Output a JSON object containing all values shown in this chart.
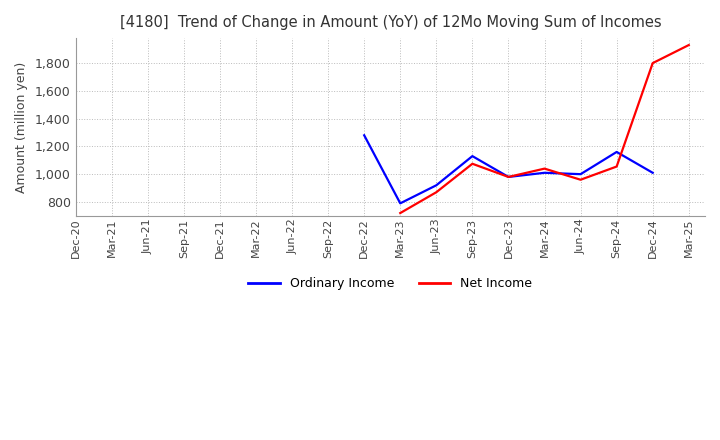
{
  "title": "[4180]  Trend of Change in Amount (YoY) of 12Mo Moving Sum of Incomes",
  "ylabel": "Amount (million yen)",
  "background_color": "#ffffff",
  "grid_color": "#bbbbbb",
  "title_color": "#333333",
  "x_labels": [
    "Dec-20",
    "Mar-21",
    "Jun-21",
    "Sep-21",
    "Dec-21",
    "Mar-22",
    "Jun-22",
    "Sep-22",
    "Dec-22",
    "Mar-23",
    "Jun-23",
    "Sep-23",
    "Dec-23",
    "Mar-24",
    "Jun-24",
    "Sep-24",
    "Dec-24",
    "Mar-25"
  ],
  "ordinary_income": [
    null,
    null,
    null,
    null,
    null,
    null,
    null,
    null,
    1280,
    790,
    920,
    1130,
    980,
    1010,
    1000,
    1160,
    1010,
    null
  ],
  "net_income": [
    null,
    null,
    null,
    null,
    null,
    null,
    null,
    null,
    null,
    720,
    870,
    1075,
    980,
    1040,
    960,
    1055,
    1800,
    1930
  ],
  "ordinary_color": "#0000ff",
  "net_color": "#ff0000",
  "ylim": [
    700,
    1980
  ],
  "yticks": [
    800,
    1000,
    1200,
    1400,
    1600,
    1800
  ],
  "line_width": 1.6
}
